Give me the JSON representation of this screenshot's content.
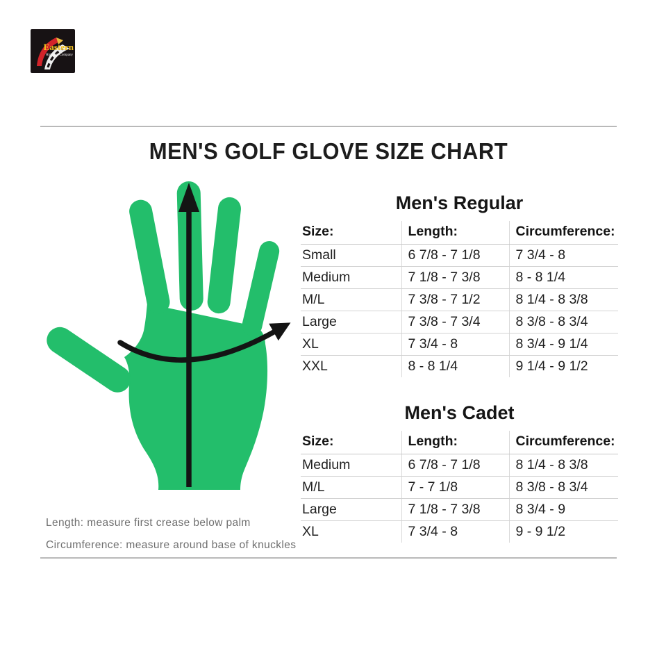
{
  "logo": {
    "brand": "Eastern",
    "subtitle": "Highway Company",
    "bg_color": "#171214",
    "brand_color": "#f2c01e",
    "road_red": "#d2232a"
  },
  "title": "MEN'S GOLF GLOVE SIZE CHART",
  "diagram": {
    "hand_color": "#23be6b",
    "arrow_color": "#141414",
    "length_note": "Length: measure first crease below palm",
    "circumference_note": "Circumference: measure around base of knuckles"
  },
  "chart_data": [
    {
      "type": "table",
      "title": "Men's Regular",
      "columns": [
        "Size:",
        "Length:",
        "Circumference:"
      ],
      "rows": [
        [
          "Small",
          "6 7/8 - 7 1/8",
          "7 3/4 - 8"
        ],
        [
          "Medium",
          "7 1/8 - 7 3/8",
          "8 - 8 1/4"
        ],
        [
          "M/L",
          "7 3/8 - 7 1/2",
          "8 1/4 - 8 3/8"
        ],
        [
          "Large",
          "7 3/8 - 7 3/4",
          "8 3/8 - 8 3/4"
        ],
        [
          "XL",
          "7 3/4 - 8",
          "8 3/4 - 9 1/4"
        ],
        [
          "XXL",
          "8 - 8 1/4",
          "9 1/4 - 9 1/2"
        ]
      ]
    },
    {
      "type": "table",
      "title": "Men's Cadet",
      "columns": [
        "Size:",
        "Length:",
        "Circumference:"
      ],
      "rows": [
        [
          "Medium",
          "6 7/8 - 7 1/8",
          "8 1/4 - 8 3/8"
        ],
        [
          "M/L",
          "7 - 7 1/8",
          "8 3/8 - 8 3/4"
        ],
        [
          "Large",
          "7 1/8 - 7 3/8",
          "8 3/4 - 9"
        ],
        [
          "XL",
          "7 3/4 - 8",
          "9 - 9 1/2"
        ]
      ]
    }
  ]
}
